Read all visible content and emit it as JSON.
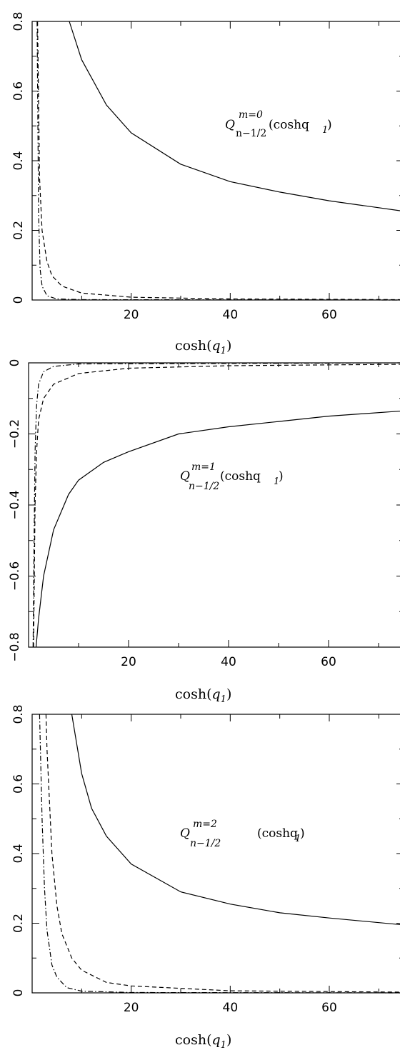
{
  "chart_data": [
    {
      "type": "line",
      "xlabel": "cosh(q1)",
      "xlim": [
        0,
        75
      ],
      "ylim": [
        0,
        0.8
      ],
      "xticks": [
        20,
        40,
        60
      ],
      "yticks": [
        0,
        0.2,
        0.4,
        0.6,
        0.8
      ],
      "ytick_labels": [
        "0",
        "0.2",
        "0.4",
        "0.6",
        "0.8"
      ],
      "annotation": {
        "Q": "Q",
        "sup": "m=0",
        "sub": "n−1/2",
        "arg": "(coshq",
        "arg_sub": "1",
        "close": ")"
      },
      "series": [
        {
          "style": "solid",
          "x": [
            7.5,
            10,
            15,
            20,
            30,
            40,
            50,
            60,
            75
          ],
          "y": [
            0.8,
            0.69,
            0.56,
            0.48,
            0.39,
            0.34,
            0.31,
            0.285,
            0.255
          ]
        },
        {
          "style": "dashed",
          "x": [
            1.1,
            1.5,
            2,
            3,
            4,
            6,
            10,
            20,
            40,
            75
          ],
          "y": [
            0.8,
            0.35,
            0.2,
            0.11,
            0.07,
            0.04,
            0.02,
            0.008,
            0.003,
            0.001
          ]
        },
        {
          "style": "dashdot",
          "x": [
            1.0,
            1.3,
            1.6,
            2,
            3,
            5,
            10,
            75
          ],
          "y": [
            0.8,
            0.25,
            0.09,
            0.04,
            0.012,
            0.003,
            0.001,
            0
          ]
        }
      ]
    },
    {
      "type": "line",
      "xlabel": "cosh(q1)",
      "xlim": [
        0,
        75
      ],
      "ylim": [
        -0.8,
        0
      ],
      "xticks": [
        20,
        40,
        60
      ],
      "yticks": [
        0,
        -0.2,
        -0.4,
        -0.6,
        -0.8
      ],
      "ytick_labels": [
        "0",
        "−0.2",
        "−0.4",
        "−0.6",
        "−0.8"
      ],
      "annotation": {
        "Q": "Q",
        "sup": "m=1",
        "sub": "n−1/2",
        "arg": "(coshq",
        "arg_sub": "1",
        "close": ")"
      },
      "series": [
        {
          "style": "solid",
          "x": [
            1.5,
            2,
            3,
            5,
            8,
            10,
            15,
            20,
            30,
            40,
            50,
            60,
            75
          ],
          "y": [
            -0.8,
            -0.72,
            -0.6,
            -0.47,
            -0.37,
            -0.33,
            -0.28,
            -0.25,
            -0.2,
            -0.18,
            -0.165,
            -0.15,
            -0.135
          ]
        },
        {
          "style": "dashed",
          "x": [
            1.0,
            1.3,
            1.6,
            2,
            3,
            5,
            10,
            20,
            40,
            75
          ],
          "y": [
            -0.8,
            -0.4,
            -0.25,
            -0.16,
            -0.1,
            -0.06,
            -0.03,
            -0.015,
            -0.008,
            -0.004
          ]
        },
        {
          "style": "dashdot",
          "x": [
            0.9,
            1.1,
            1.3,
            1.6,
            2,
            3,
            5,
            10,
            75
          ],
          "y": [
            -0.8,
            -0.5,
            -0.25,
            -0.12,
            -0.06,
            -0.025,
            -0.01,
            -0.003,
            0
          ]
        }
      ]
    },
    {
      "type": "line",
      "xlabel": "cosh(q1)",
      "xlim": [
        0,
        75
      ],
      "ylim": [
        0,
        0.8
      ],
      "xticks": [
        20,
        40,
        60
      ],
      "yticks": [
        0,
        0.2,
        0.4,
        0.6,
        0.8
      ],
      "ytick_labels": [
        "0",
        "0.2",
        "0.4",
        "0.6",
        "0.8"
      ],
      "annotation": {
        "Q": "Q",
        "sup": "m=2",
        "sub": "n−1/2",
        "arg": "(coshq",
        "arg_sub": "1",
        "close": ")"
      },
      "series": [
        {
          "style": "solid",
          "x": [
            8,
            10,
            12,
            15,
            20,
            30,
            40,
            50,
            60,
            75
          ],
          "y": [
            0.8,
            0.63,
            0.53,
            0.45,
            0.37,
            0.29,
            0.255,
            0.23,
            0.215,
            0.195
          ]
        },
        {
          "style": "dashed",
          "x": [
            2.8,
            3,
            4,
            5,
            6,
            8,
            10,
            15,
            20,
            40,
            75
          ],
          "y": [
            0.8,
            0.7,
            0.4,
            0.25,
            0.17,
            0.1,
            0.065,
            0.03,
            0.02,
            0.006,
            0.002
          ]
        },
        {
          "style": "dashdot",
          "x": [
            1.5,
            2,
            2.5,
            3,
            4,
            5,
            7,
            10,
            20,
            75
          ],
          "y": [
            0.8,
            0.5,
            0.3,
            0.18,
            0.08,
            0.045,
            0.015,
            0.005,
            0.001,
            0
          ]
        }
      ]
    }
  ]
}
